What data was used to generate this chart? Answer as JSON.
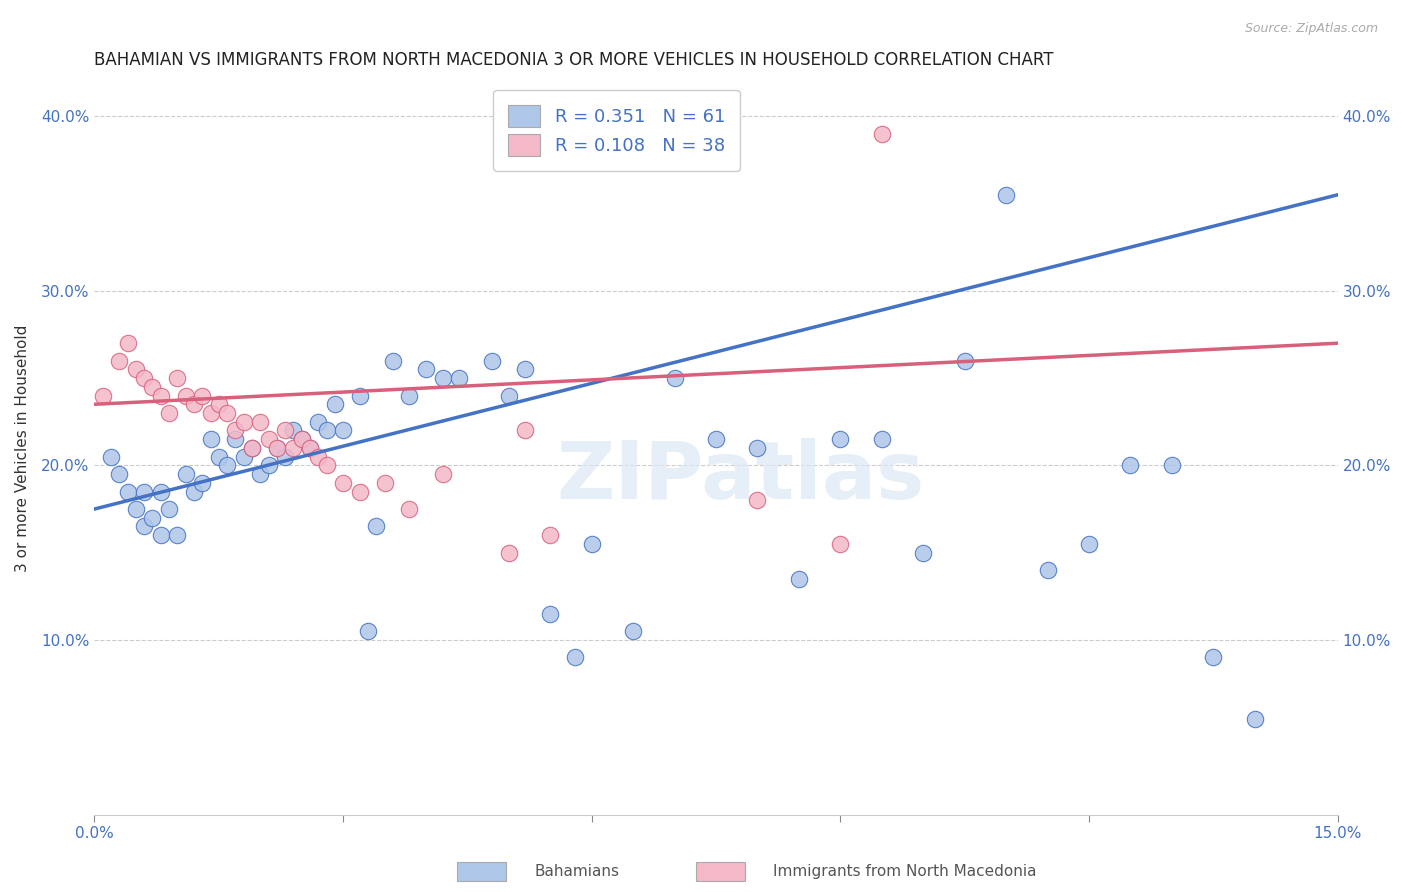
{
  "title": "BAHAMIAN VS IMMIGRANTS FROM NORTH MACEDONIA 3 OR MORE VEHICLES IN HOUSEHOLD CORRELATION CHART",
  "source_text": "Source: ZipAtlas.com",
  "ylabel": "3 or more Vehicles in Household",
  "xlim": [
    0.0,
    0.15
  ],
  "ylim": [
    0.0,
    0.42
  ],
  "xticks": [
    0.0,
    0.03,
    0.06,
    0.09,
    0.12,
    0.15
  ],
  "yticks": [
    0.0,
    0.1,
    0.2,
    0.3,
    0.4
  ],
  "legend_label1": "Bahamians",
  "legend_label2": "Immigrants from North Macedonia",
  "R1": 0.351,
  "N1": 61,
  "R2": 0.108,
  "N2": 38,
  "color1": "#aec6e8",
  "color2": "#f4b8c8",
  "line_color1": "#4472c4",
  "line_color2": "#d9607a",
  "watermark": "ZIPatlas",
  "blue_scatter_x": [
    0.002,
    0.003,
    0.004,
    0.005,
    0.006,
    0.006,
    0.007,
    0.008,
    0.008,
    0.009,
    0.01,
    0.011,
    0.012,
    0.013,
    0.014,
    0.015,
    0.016,
    0.017,
    0.018,
    0.019,
    0.02,
    0.021,
    0.022,
    0.023,
    0.024,
    0.025,
    0.026,
    0.027,
    0.028,
    0.029,
    0.03,
    0.032,
    0.033,
    0.034,
    0.036,
    0.038,
    0.04,
    0.042,
    0.044,
    0.048,
    0.05,
    0.052,
    0.055,
    0.058,
    0.06,
    0.065,
    0.07,
    0.075,
    0.08,
    0.085,
    0.09,
    0.095,
    0.1,
    0.105,
    0.11,
    0.115,
    0.12,
    0.125,
    0.13,
    0.135,
    0.14
  ],
  "blue_scatter_y": [
    0.205,
    0.195,
    0.185,
    0.175,
    0.165,
    0.185,
    0.17,
    0.16,
    0.185,
    0.175,
    0.16,
    0.195,
    0.185,
    0.19,
    0.215,
    0.205,
    0.2,
    0.215,
    0.205,
    0.21,
    0.195,
    0.2,
    0.21,
    0.205,
    0.22,
    0.215,
    0.21,
    0.225,
    0.22,
    0.235,
    0.22,
    0.24,
    0.105,
    0.165,
    0.26,
    0.24,
    0.255,
    0.25,
    0.25,
    0.26,
    0.24,
    0.255,
    0.115,
    0.09,
    0.155,
    0.105,
    0.25,
    0.215,
    0.21,
    0.135,
    0.215,
    0.215,
    0.15,
    0.26,
    0.355,
    0.14,
    0.155,
    0.2,
    0.2,
    0.09,
    0.055
  ],
  "pink_scatter_x": [
    0.001,
    0.003,
    0.004,
    0.005,
    0.006,
    0.007,
    0.008,
    0.009,
    0.01,
    0.011,
    0.012,
    0.013,
    0.014,
    0.015,
    0.016,
    0.017,
    0.018,
    0.019,
    0.02,
    0.021,
    0.022,
    0.023,
    0.024,
    0.025,
    0.026,
    0.027,
    0.028,
    0.03,
    0.032,
    0.035,
    0.038,
    0.042,
    0.05,
    0.052,
    0.055,
    0.08,
    0.09,
    0.095
  ],
  "pink_scatter_y": [
    0.24,
    0.26,
    0.27,
    0.255,
    0.25,
    0.245,
    0.24,
    0.23,
    0.25,
    0.24,
    0.235,
    0.24,
    0.23,
    0.235,
    0.23,
    0.22,
    0.225,
    0.21,
    0.225,
    0.215,
    0.21,
    0.22,
    0.21,
    0.215,
    0.21,
    0.205,
    0.2,
    0.19,
    0.185,
    0.19,
    0.175,
    0.195,
    0.15,
    0.22,
    0.16,
    0.18,
    0.155,
    0.39
  ],
  "grid_color": "#cccccc",
  "background_color": "#ffffff",
  "title_fontsize": 12,
  "label_fontsize": 11,
  "tick_fontsize": 11,
  "legend_fontsize": 13,
  "blue_line_x0": 0.0,
  "blue_line_y0": 0.175,
  "blue_line_x1": 0.15,
  "blue_line_y1": 0.355,
  "pink_line_x0": 0.0,
  "pink_line_y0": 0.235,
  "pink_line_x1": 0.15,
  "pink_line_y1": 0.27
}
